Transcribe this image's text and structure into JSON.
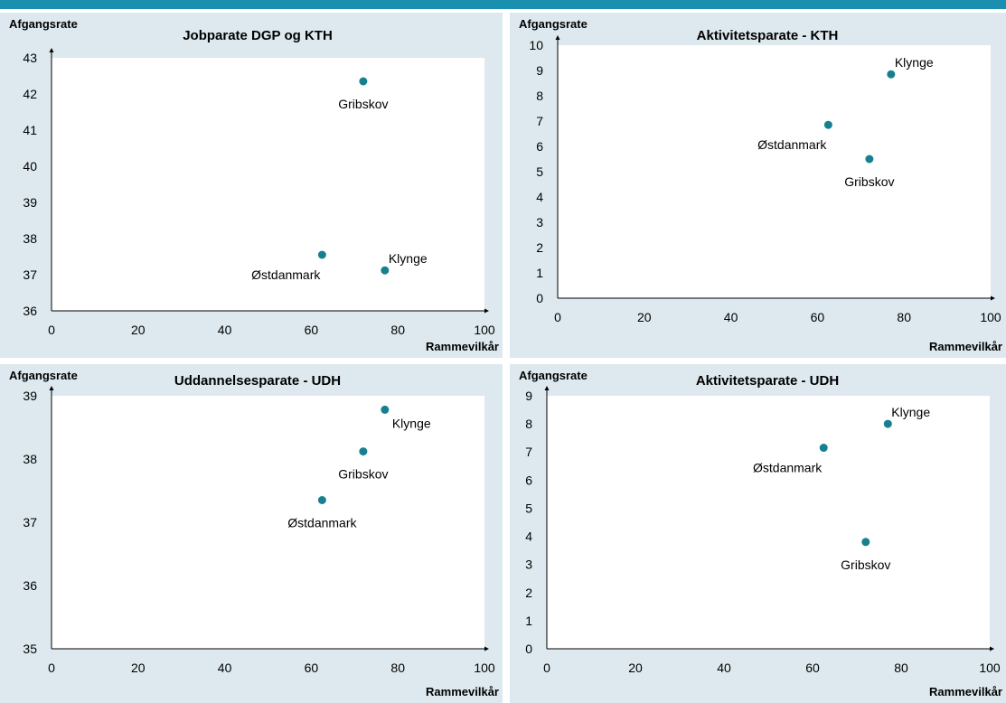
{
  "colors": {
    "point": "#17808f",
    "panel_bg": "#dde9ee",
    "plot_bg": "#ffffff",
    "accent_strip": "#1b8fb0"
  },
  "chart_data": [
    {
      "type": "scatter",
      "title": "Jobparate DGP og KTH",
      "ylabel": "Afgangsrate",
      "xlabel": "Rammevilkår",
      "xlim": [
        0,
        100
      ],
      "ylim": [
        36,
        43
      ],
      "xticks": [
        0,
        20,
        40,
        60,
        80,
        100
      ],
      "yticks": [
        36,
        37,
        38,
        39,
        40,
        41,
        42,
        43
      ],
      "grid": false,
      "points": [
        {
          "label": "Gribskov",
          "x": 72,
          "y": 42.35,
          "label_pos": "below"
        },
        {
          "label": "Østdanmark",
          "x": 62.5,
          "y": 37.55,
          "label_pos": "below-left"
        },
        {
          "label": "Klynge",
          "x": 77,
          "y": 37.12,
          "label_pos": "above-right"
        }
      ]
    },
    {
      "type": "scatter",
      "title": "Aktivitetsparate - KTH",
      "ylabel": "Afgangsrate",
      "xlabel": "Rammevilkår",
      "xlim": [
        0,
        100
      ],
      "ylim": [
        0,
        10
      ],
      "xticks": [
        0,
        20,
        40,
        60,
        80,
        100
      ],
      "yticks": [
        0,
        1,
        2,
        3,
        4,
        5,
        6,
        7,
        8,
        9,
        10
      ],
      "grid": false,
      "points": [
        {
          "label": "Klynge",
          "x": 77,
          "y": 8.85,
          "label_pos": "above-right"
        },
        {
          "label": "Østdanmark",
          "x": 62.5,
          "y": 6.85,
          "label_pos": "below-left"
        },
        {
          "label": "Gribskov",
          "x": 72,
          "y": 5.5,
          "label_pos": "below"
        }
      ]
    },
    {
      "type": "scatter",
      "title": "Uddannelsesparate - UDH",
      "ylabel": "Afgangsrate",
      "xlabel": "Rammevilkår",
      "xlim": [
        0,
        100
      ],
      "ylim": [
        35,
        39
      ],
      "xticks": [
        0,
        20,
        40,
        60,
        80,
        100
      ],
      "yticks": [
        35,
        36,
        37,
        38,
        39
      ],
      "grid": false,
      "points": [
        {
          "label": "Klynge",
          "x": 77,
          "y": 38.78,
          "label_pos": "below-right"
        },
        {
          "label": "Gribskov",
          "x": 72,
          "y": 38.12,
          "label_pos": "below"
        },
        {
          "label": "Østdanmark",
          "x": 62.5,
          "y": 37.35,
          "label_pos": "below"
        }
      ]
    },
    {
      "type": "scatter",
      "title": "Aktivitetsparate - UDH",
      "ylabel": "Afgangsrate",
      "xlabel": "Rammevilkår",
      "xlim": [
        0,
        100
      ],
      "ylim": [
        0,
        9
      ],
      "xticks": [
        0,
        20,
        40,
        60,
        80,
        100
      ],
      "yticks": [
        0,
        1,
        2,
        3,
        4,
        5,
        6,
        7,
        8,
        9
      ],
      "grid": false,
      "points": [
        {
          "label": "Klynge",
          "x": 77,
          "y": 8.0,
          "label_pos": "above-right"
        },
        {
          "label": "Østdanmark",
          "x": 62.5,
          "y": 7.15,
          "label_pos": "below-left"
        },
        {
          "label": "Gribskov",
          "x": 72,
          "y": 3.8,
          "label_pos": "below"
        }
      ]
    }
  ]
}
